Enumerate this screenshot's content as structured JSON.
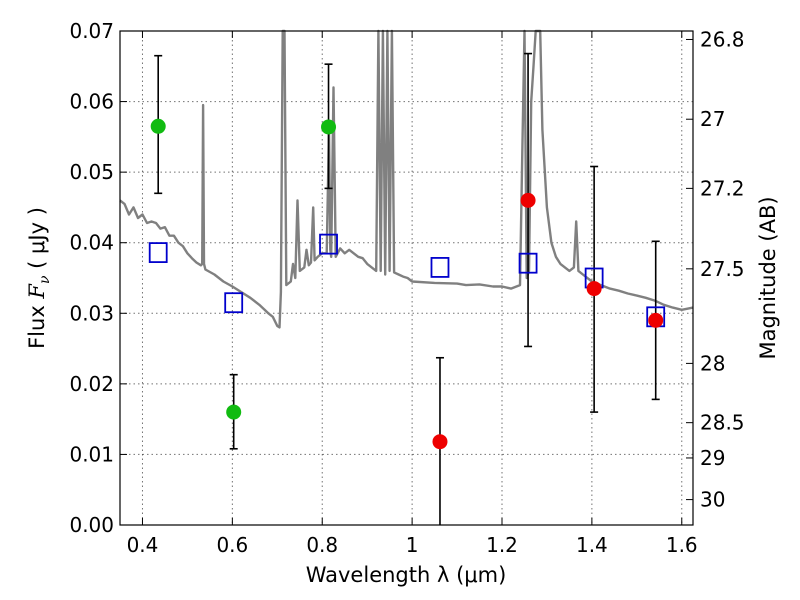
{
  "chart_data": {
    "type": "scatter",
    "xlabel": "Wavelength  λ (μm)",
    "ylabel": "Flux  F_ν  ( μJy )",
    "ylabel_parts": {
      "pre": "Flux  ",
      "var": "F",
      "sub": "ν",
      "post": "  ( μJy )"
    },
    "y2label": "Magnitude (AB)",
    "xlim": [
      0.35,
      1.625
    ],
    "ylim": [
      0.0,
      0.07
    ],
    "grid": true,
    "x_ticks": [
      0.4,
      0.6,
      0.8,
      1.0,
      1.2,
      1.4,
      1.6
    ],
    "x_tick_labels": [
      "0.4",
      "0.6",
      "0.8",
      "1",
      "1.2",
      "1.4",
      "1.6"
    ],
    "y_ticks": [
      0.0,
      0.01,
      0.02,
      0.03,
      0.04,
      0.05,
      0.06,
      0.07
    ],
    "y_tick_labels": [
      "0.00",
      "0.01",
      "0.02",
      "0.03",
      "0.04",
      "0.05",
      "0.06",
      "0.07"
    ],
    "y2_ticks": [
      {
        "label": "26.8",
        "flux": 0.0688
      },
      {
        "label": "27",
        "flux": 0.0575
      },
      {
        "label": "27.2",
        "flux": 0.0477
      },
      {
        "label": "27.5",
        "flux": 0.0363
      },
      {
        "label": "28",
        "flux": 0.0229
      },
      {
        "label": "28.5",
        "flux": 0.0145
      },
      {
        "label": "29",
        "flux": 0.0095
      },
      {
        "label": "30",
        "flux": 0.0036
      }
    ],
    "series": [
      {
        "kind": "line",
        "color": "#808080",
        "points": [
          [
            0.35,
            0.046
          ],
          [
            0.36,
            0.0455
          ],
          [
            0.37,
            0.044
          ],
          [
            0.38,
            0.045
          ],
          [
            0.39,
            0.0435
          ],
          [
            0.4,
            0.044
          ],
          [
            0.41,
            0.0428
          ],
          [
            0.42,
            0.043
          ],
          [
            0.43,
            0.0428
          ],
          [
            0.44,
            0.042
          ],
          [
            0.45,
            0.0422
          ],
          [
            0.46,
            0.041
          ],
          [
            0.47,
            0.041
          ],
          [
            0.48,
            0.04
          ],
          [
            0.49,
            0.0395
          ],
          [
            0.5,
            0.0385
          ],
          [
            0.51,
            0.0378
          ],
          [
            0.52,
            0.0372
          ],
          [
            0.53,
            0.0368
          ],
          [
            0.533,
            0.037
          ],
          [
            0.535,
            0.0595
          ],
          [
            0.537,
            0.037
          ],
          [
            0.54,
            0.0362
          ],
          [
            0.56,
            0.0355
          ],
          [
            0.58,
            0.0345
          ],
          [
            0.6,
            0.0338
          ],
          [
            0.62,
            0.033
          ],
          [
            0.64,
            0.0322
          ],
          [
            0.66,
            0.0312
          ],
          [
            0.68,
            0.03
          ],
          [
            0.69,
            0.0295
          ],
          [
            0.7,
            0.0282
          ],
          [
            0.705,
            0.028
          ],
          [
            0.708,
            0.033
          ],
          [
            0.712,
            0.07
          ],
          [
            0.716,
            0.07
          ],
          [
            0.72,
            0.034
          ],
          [
            0.73,
            0.0345
          ],
          [
            0.735,
            0.037
          ],
          [
            0.74,
            0.035
          ],
          [
            0.745,
            0.046
          ],
          [
            0.75,
            0.036
          ],
          [
            0.76,
            0.0365
          ],
          [
            0.765,
            0.039
          ],
          [
            0.77,
            0.0368
          ],
          [
            0.775,
            0.0372
          ],
          [
            0.78,
            0.045
          ],
          [
            0.783,
            0.0375
          ],
          [
            0.79,
            0.038
          ],
          [
            0.8,
            0.0385
          ],
          [
            0.81,
            0.0385
          ],
          [
            0.815,
            0.056
          ],
          [
            0.818,
            0.039
          ],
          [
            0.82,
            0.038
          ],
          [
            0.825,
            0.062
          ],
          [
            0.83,
            0.038
          ],
          [
            0.84,
            0.0392
          ],
          [
            0.85,
            0.0385
          ],
          [
            0.86,
            0.039
          ],
          [
            0.87,
            0.0385
          ],
          [
            0.88,
            0.038
          ],
          [
            0.89,
            0.0378
          ],
          [
            0.9,
            0.037
          ],
          [
            0.91,
            0.0365
          ],
          [
            0.92,
            0.036
          ],
          [
            0.925,
            0.07
          ],
          [
            0.93,
            0.036
          ],
          [
            0.935,
            0.07
          ],
          [
            0.94,
            0.0355
          ],
          [
            0.945,
            0.07
          ],
          [
            0.95,
            0.036
          ],
          [
            0.955,
            0.07
          ],
          [
            0.96,
            0.0358
          ],
          [
            0.97,
            0.0355
          ],
          [
            0.98,
            0.0352
          ],
          [
            0.99,
            0.035
          ],
          [
            1.0,
            0.0345
          ],
          [
            1.05,
            0.0343
          ],
          [
            1.1,
            0.0342
          ],
          [
            1.12,
            0.034
          ],
          [
            1.15,
            0.0341
          ],
          [
            1.18,
            0.0338
          ],
          [
            1.2,
            0.0338
          ],
          [
            1.22,
            0.0335
          ],
          [
            1.24,
            0.034
          ],
          [
            1.245,
            0.052
          ],
          [
            1.25,
            0.07
          ],
          [
            1.255,
            0.035
          ],
          [
            1.26,
            0.036
          ],
          [
            1.265,
            0.06
          ],
          [
            1.27,
            0.065
          ],
          [
            1.275,
            0.07
          ],
          [
            1.285,
            0.07
          ],
          [
            1.29,
            0.056
          ],
          [
            1.3,
            0.045
          ],
          [
            1.31,
            0.04
          ],
          [
            1.32,
            0.038
          ],
          [
            1.33,
            0.037
          ],
          [
            1.34,
            0.0365
          ],
          [
            1.35,
            0.036
          ],
          [
            1.36,
            0.0365
          ],
          [
            1.365,
            0.043
          ],
          [
            1.37,
            0.036
          ],
          [
            1.38,
            0.0355
          ],
          [
            1.4,
            0.0345
          ],
          [
            1.42,
            0.034
          ],
          [
            1.44,
            0.0335
          ],
          [
            1.46,
            0.0332
          ],
          [
            1.48,
            0.0328
          ],
          [
            1.5,
            0.0325
          ],
          [
            1.52,
            0.0322
          ],
          [
            1.54,
            0.0318
          ],
          [
            1.56,
            0.0312
          ],
          [
            1.58,
            0.0308
          ],
          [
            1.6,
            0.0305
          ],
          [
            1.625,
            0.0308
          ]
        ]
      },
      {
        "kind": "points",
        "marker": "open-square",
        "color": "#0000cc",
        "points": [
          [
            0.435,
            0.0386
          ],
          [
            0.603,
            0.0315
          ],
          [
            0.814,
            0.0398
          ],
          [
            1.062,
            0.0365
          ],
          [
            1.258,
            0.0371
          ],
          [
            1.405,
            0.035
          ],
          [
            1.542,
            0.0295
          ]
        ]
      },
      {
        "kind": "points",
        "marker": "filled-circle",
        "color": "#11bb11",
        "points": [
          [
            0.435,
            0.0565,
            0.047,
            0.0665
          ],
          [
            0.603,
            0.016,
            0.0108,
            0.0213
          ],
          [
            0.814,
            0.0564,
            0.0477,
            0.0653
          ]
        ]
      },
      {
        "kind": "points",
        "marker": "filled-circle",
        "color": "#ee0000",
        "points": [
          [
            1.062,
            0.0118,
            0.0,
            0.0237
          ],
          [
            1.258,
            0.046,
            0.0253,
            0.0668
          ],
          [
            1.405,
            0.0335,
            0.016,
            0.0508
          ],
          [
            1.542,
            0.029,
            0.0178,
            0.0402
          ]
        ]
      }
    ]
  }
}
